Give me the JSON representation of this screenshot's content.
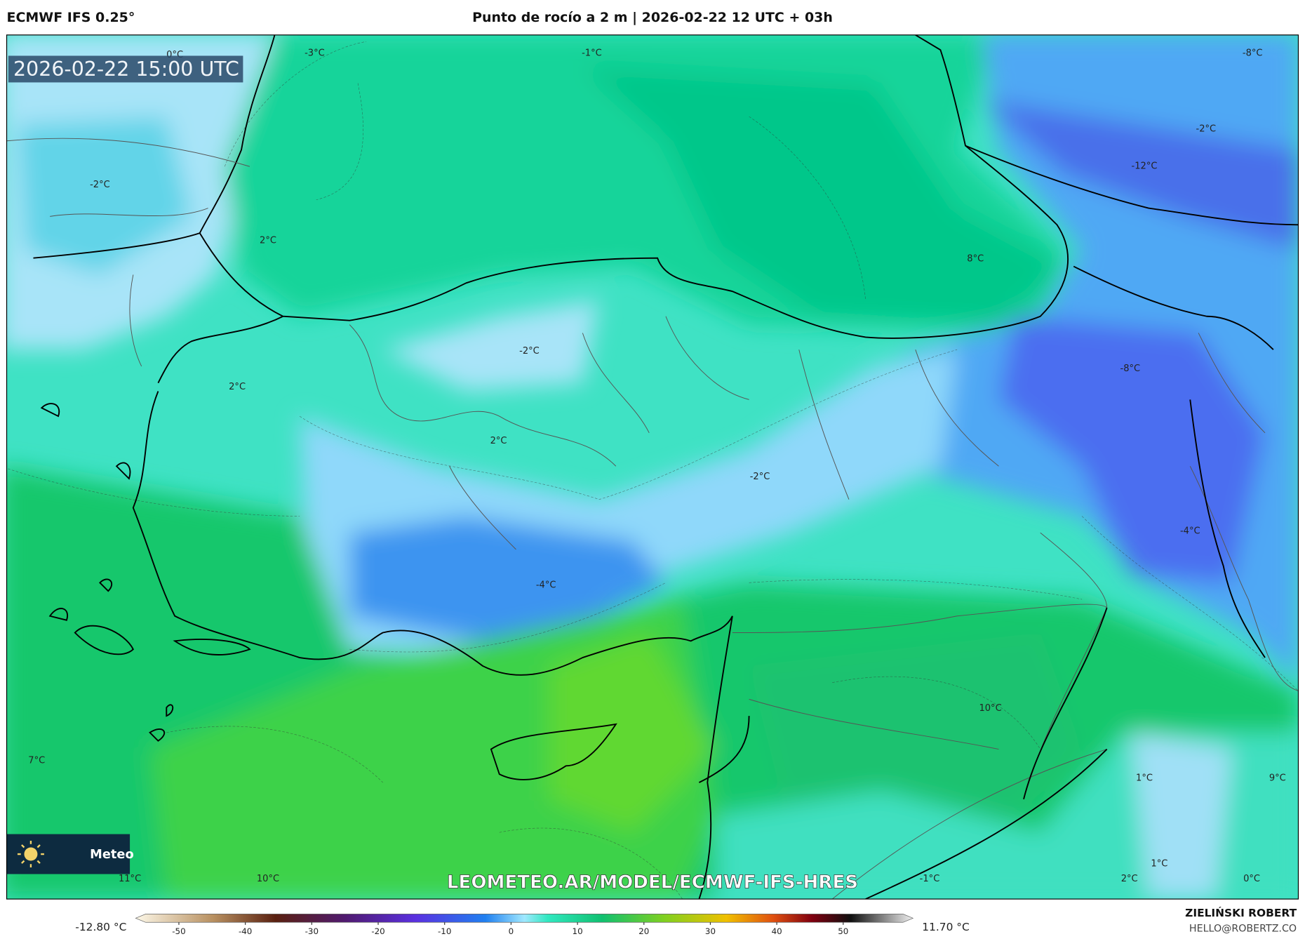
{
  "header": {
    "model": "ECMWF IFS 0.25°",
    "title": "Punto de rocío a 2 m | 2026-02-22 12 UTC + 03h",
    "valid_time": "2026-02-22 15:00 UTC"
  },
  "map": {
    "labels": [
      "0°C",
      "-3°C",
      "-1°C",
      "-8°C",
      "-2°C",
      "-12°C",
      "-2°C",
      "2°C",
      "8°C",
      "-2°C",
      "-8°C",
      "2°C",
      "2°C",
      "-2°C",
      "-4°C",
      "-4°C",
      "10°C",
      "7°C",
      "1°C",
      "9°C",
      "1°C",
      "11°C",
      "10°C",
      "-1°C",
      "2°C",
      "0°C"
    ],
    "watermark": "LEOMETEO.AR/MODEL/ECMWF-IFS-HRES",
    "logo": "Meteo"
  },
  "colorbar": {
    "clim": [
      -55,
      59
    ],
    "ticks": [
      -50,
      -40,
      -30,
      -20,
      -10,
      0,
      10,
      20,
      30,
      40,
      50
    ],
    "min_label": "-12.80 °C",
    "max_label": "11.70 °C"
  },
  "footer": {
    "author": "ZIELIŃSKI ROBERT",
    "contact": "HELLO@ROBERTZ.CO"
  }
}
